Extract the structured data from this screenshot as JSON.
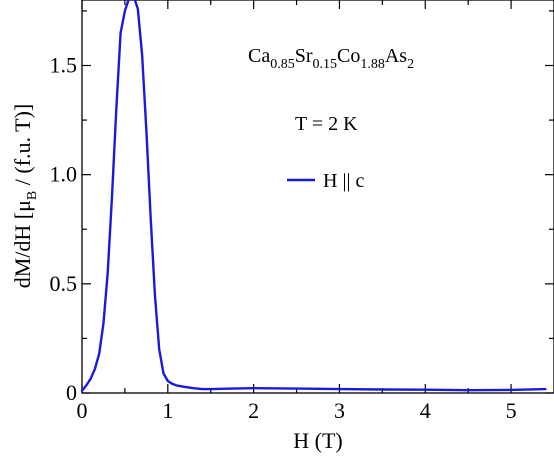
{
  "chart_data": {
    "type": "line",
    "title": "",
    "xlabel": "H (T)",
    "ylabel": {
      "main": "dM/dH [",
      "mu": "μ",
      "mu_sub": "B",
      "rest": " / (f.u. T)]"
    },
    "xlim": [
      0,
      5.5
    ],
    "ylim": [
      0,
      1.8
    ],
    "x_ticks": [
      0,
      1,
      2,
      3,
      4,
      5
    ],
    "x_tick_labels": [
      "0",
      "1",
      "2",
      "3",
      "4",
      "5"
    ],
    "y_ticks": [
      0,
      0.5,
      1.0,
      1.5
    ],
    "y_tick_labels": [
      "0",
      "0.5",
      "1.0",
      "1.5"
    ],
    "grid": false,
    "legend_position": "top-right",
    "annotations": {
      "compound": [
        {
          "text": "Ca",
          "sub": false
        },
        {
          "text": "0.85",
          "sub": true
        },
        {
          "text": "Sr",
          "sub": false
        },
        {
          "text": "0.15",
          "sub": true
        },
        {
          "text": "Co",
          "sub": false
        },
        {
          "text": "1.88",
          "sub": true
        },
        {
          "text": "As",
          "sub": false
        },
        {
          "text": "2",
          "sub": true
        }
      ],
      "temperature": "T = 2 K"
    },
    "series": [
      {
        "name": "H || c",
        "color": "#1a1adc",
        "x": [
          0.0,
          0.05,
          0.1,
          0.15,
          0.2,
          0.25,
          0.3,
          0.35,
          0.4,
          0.45,
          0.5,
          0.55,
          0.6,
          0.65,
          0.7,
          0.75,
          0.8,
          0.85,
          0.9,
          0.95,
          1.0,
          1.05,
          1.1,
          1.2,
          1.3,
          1.4,
          1.5,
          1.75,
          2.0,
          2.5,
          3.0,
          3.5,
          4.0,
          4.5,
          5.0,
          5.4
        ],
        "y": [
          0.01,
          0.035,
          0.065,
          0.11,
          0.18,
          0.32,
          0.55,
          0.9,
          1.3,
          1.65,
          1.75,
          1.81,
          1.82,
          1.76,
          1.55,
          1.2,
          0.8,
          0.45,
          0.2,
          0.09,
          0.055,
          0.042,
          0.035,
          0.028,
          0.022,
          0.018,
          0.018,
          0.02,
          0.022,
          0.02,
          0.018,
          0.016,
          0.015,
          0.013,
          0.014,
          0.018
        ]
      }
    ]
  }
}
